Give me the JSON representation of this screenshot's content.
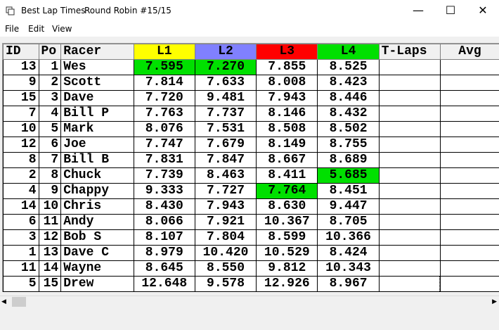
{
  "window": {
    "title": "Best Lap Times",
    "subtitle": "Round Robin #15/15"
  },
  "menu": [
    "File",
    "Edit",
    "View"
  ],
  "table": {
    "columns": [
      "ID",
      "Po",
      "Racer",
      "L1",
      "L2",
      "L3",
      "L4",
      "T-Laps",
      "Avg"
    ],
    "rows": [
      [
        "13",
        "1",
        "Wes",
        "7.595",
        "7.270",
        "7.855",
        "8.525"
      ],
      [
        "9",
        "2",
        "Scott",
        "7.814",
        "7.633",
        "8.008",
        "8.423"
      ],
      [
        "15",
        "3",
        "Dave",
        "7.720",
        "9.481",
        "7.943",
        "8.446"
      ],
      [
        "7",
        "4",
        "Bill P",
        "7.763",
        "7.737",
        "8.146",
        "8.432"
      ],
      [
        "10",
        "5",
        "Mark",
        "8.076",
        "7.531",
        "8.508",
        "8.502"
      ],
      [
        "12",
        "6",
        "Joe",
        "7.747",
        "7.679",
        "8.149",
        "8.755"
      ],
      [
        "8",
        "7",
        "Bill B",
        "7.831",
        "7.847",
        "8.667",
        "8.689"
      ],
      [
        "2",
        "8",
        "Chuck",
        "7.739",
        "8.463",
        "8.411",
        "5.685"
      ],
      [
        "4",
        "9",
        "Chappy",
        "9.333",
        "7.727",
        "7.764",
        "8.451"
      ],
      [
        "14",
        "10",
        "Chris",
        "8.430",
        "7.943",
        "8.630",
        "9.447"
      ],
      [
        "6",
        "11",
        "Andy",
        "8.066",
        "7.921",
        "10.367",
        "8.705"
      ],
      [
        "3",
        "12",
        "Bob S",
        "8.107",
        "7.804",
        "8.599",
        "10.366"
      ],
      [
        "1",
        "13",
        "Dave C",
        "8.979",
        "10.420",
        "10.529",
        "8.424"
      ],
      [
        "11",
        "14",
        "Wayne",
        "8.645",
        "8.550",
        "9.812",
        "10.343"
      ],
      [
        "5",
        "15",
        "Drew",
        "12.648",
        "9.578",
        "12.926",
        "8.967"
      ]
    ]
  }
}
